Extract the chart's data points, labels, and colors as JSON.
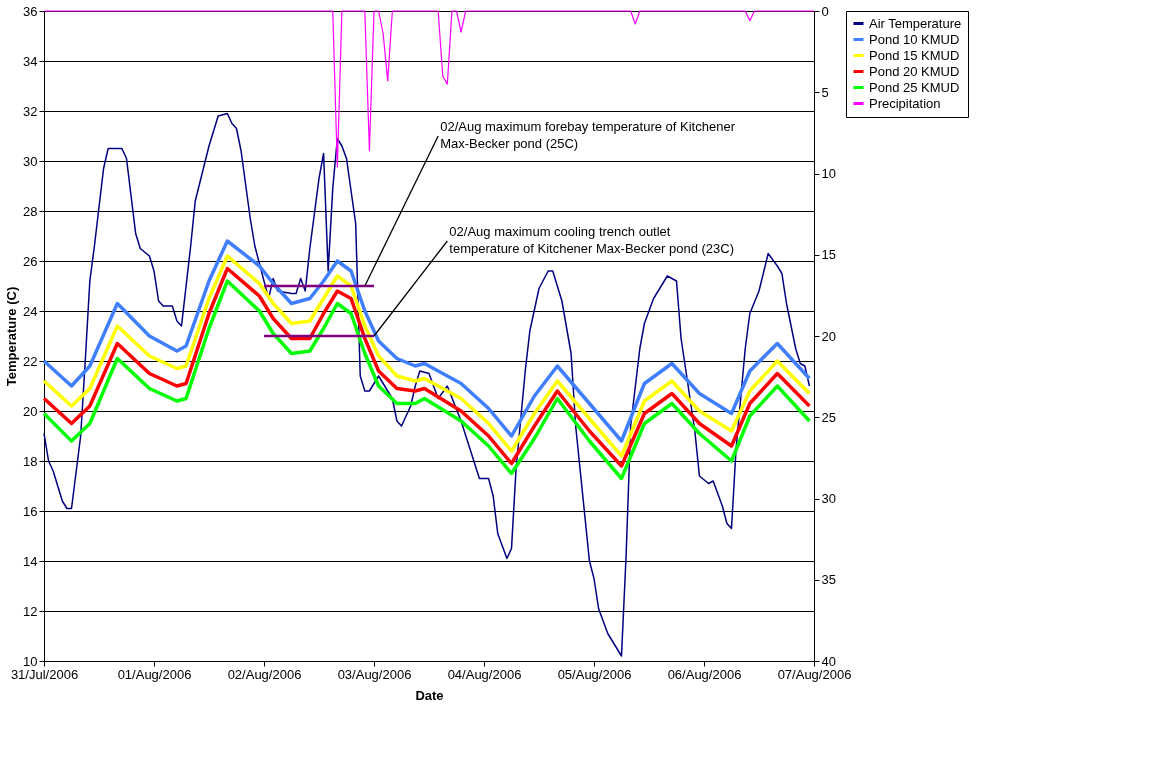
{
  "chart_data": {
    "type": "line",
    "xlabel": "Date",
    "ylabel": "Temperature (C)",
    "xlim": [
      "2006-07-31T00:00",
      "2006-08-07T00:00"
    ],
    "xticks": [
      {
        "value": "2006-07-31T00:00",
        "label": "31/Jul/2006"
      },
      {
        "value": "2006-08-01T00:00",
        "label": "01/Aug/2006"
      },
      {
        "value": "2006-08-02T00:00",
        "label": "02/Aug/2006"
      },
      {
        "value": "2006-08-03T00:00",
        "label": "03/Aug/2006"
      },
      {
        "value": "2006-08-04T00:00",
        "label": "04/Aug/2006"
      },
      {
        "value": "2006-08-05T00:00",
        "label": "05/Aug/2006"
      },
      {
        "value": "2006-08-06T00:00",
        "label": "06/Aug/2006"
      },
      {
        "value": "2006-08-07T00:00",
        "label": "07/Aug/2006"
      }
    ],
    "ylim": [
      10,
      36
    ],
    "yticks": [
      10,
      12,
      14,
      16,
      18,
      20,
      22,
      24,
      26,
      28,
      30,
      32,
      34,
      36
    ],
    "y2lim": [
      40,
      0
    ],
    "y2ticks": [
      0,
      5,
      10,
      15,
      20,
      25,
      30,
      35,
      40
    ],
    "grid": "y",
    "legend": "right",
    "marker": "none",
    "line_style": "solid",
    "x": [
      "2006-07-31T00:00",
      "2006-07-31T06:00",
      "2006-07-31T10:00",
      "2006-07-31T16:00",
      "2006-07-31T23:00",
      "2006-08-01T05:00",
      "2006-08-01T07:00",
      "2006-08-01T12:00",
      "2006-08-01T16:00",
      "2006-08-01T23:00",
      "2006-08-02T02:00",
      "2006-08-02T06:00",
      "2006-08-02T10:00",
      "2006-08-02T13:00",
      "2006-08-02T16:00",
      "2006-08-02T19:00",
      "2006-08-02T22:00",
      "2006-08-03T01:00",
      "2006-08-03T05:00",
      "2006-08-03T09:00",
      "2006-08-03T11:00",
      "2006-08-03T19:00",
      "2006-08-04T01:00",
      "2006-08-04T06:00",
      "2006-08-04T11:00",
      "2006-08-04T16:00",
      "2006-08-04T23:00",
      "2006-08-05T06:00",
      "2006-08-05T11:00",
      "2006-08-05T17:00",
      "2006-08-05T23:00",
      "2006-08-06T06:00",
      "2006-08-06T10:00",
      "2006-08-06T16:00",
      "2006-08-06T23:00"
    ],
    "series": [
      {
        "name": "Air Temperature",
        "color": "#000080",
        "x": [
          "2006-07-31T00:00",
          "2006-07-31T01:00",
          "2006-07-31T02:00",
          "2006-07-31T04:00",
          "2006-07-31T05:00",
          "2006-07-31T06:00",
          "2006-07-31T08:00",
          "2006-07-31T09:00",
          "2006-07-31T10:00",
          "2006-07-31T11:00",
          "2006-07-31T13:00",
          "2006-07-31T14:00",
          "2006-07-31T17:00",
          "2006-07-31T18:00",
          "2006-07-31T20:00",
          "2006-07-31T21:00",
          "2006-07-31T23:00",
          "2006-08-01T00:00",
          "2006-08-01T01:00",
          "2006-08-01T02:00",
          "2006-08-01T04:00",
          "2006-08-01T05:00",
          "2006-08-01T06:00",
          "2006-08-01T08:00",
          "2006-08-01T09:00",
          "2006-08-01T12:00",
          "2006-08-01T14:00",
          "2006-08-01T16:00",
          "2006-08-01T17:00",
          "2006-08-01T18:00",
          "2006-08-01T19:00",
          "2006-08-01T21:00",
          "2006-08-01T22:00",
          "2006-08-02T01:00",
          "2006-08-02T02:00",
          "2006-08-02T03:00",
          "2006-08-02T06:00",
          "2006-08-02T07:00",
          "2006-08-02T08:00",
          "2006-08-02T09:00",
          "2006-08-02T10:00",
          "2006-08-02T12:00",
          "2006-08-02T13:00",
          "2006-08-02T14:00",
          "2006-08-02T15:00",
          "2006-08-02T16:00",
          "2006-08-02T17:00",
          "2006-08-02T18:00",
          "2006-08-02T20:00",
          "2006-08-02T21:00",
          "2006-08-02T22:00",
          "2006-08-02T23:00",
          "2006-08-03T01:00",
          "2006-08-03T02:00",
          "2006-08-03T04:00",
          "2006-08-03T05:00",
          "2006-08-03T06:00",
          "2006-08-03T08:00",
          "2006-08-03T09:00",
          "2006-08-03T10:00",
          "2006-08-03T12:00",
          "2006-08-03T14:00",
          "2006-08-03T16:00",
          "2006-08-03T19:00",
          "2006-08-03T23:00",
          "2006-08-04T01:00",
          "2006-08-04T02:00",
          "2006-08-04T03:00",
          "2006-08-04T05:00",
          "2006-08-04T06:00",
          "2006-08-04T07:00",
          "2006-08-04T09:00",
          "2006-08-04T10:00",
          "2006-08-04T12:00",
          "2006-08-04T14:00",
          "2006-08-04T15:00",
          "2006-08-04T17:00",
          "2006-08-04T19:00",
          "2006-08-04T20:00",
          "2006-08-04T23:00",
          "2006-08-05T00:00",
          "2006-08-05T01:00",
          "2006-08-05T03:00",
          "2006-08-05T06:00",
          "2006-08-05T07:00",
          "2006-08-05T08:00",
          "2006-08-05T10:00",
          "2006-08-05T11:00",
          "2006-08-05T13:00",
          "2006-08-05T15:00",
          "2006-08-05T16:00",
          "2006-08-05T18:00",
          "2006-08-05T19:00",
          "2006-08-05T22:00",
          "2006-08-05T23:00",
          "2006-08-06T01:00",
          "2006-08-06T02:00",
          "2006-08-06T04:00",
          "2006-08-06T05:00",
          "2006-08-06T06:00",
          "2006-08-06T07:00",
          "2006-08-06T09:00",
          "2006-08-06T10:00",
          "2006-08-06T12:00",
          "2006-08-06T14:00",
          "2006-08-06T16:00",
          "2006-08-06T17:00",
          "2006-08-06T18:00",
          "2006-08-06T20:00",
          "2006-08-06T21:00",
          "2006-08-06T22:00",
          "2006-08-06T23:00"
        ],
        "values": [
          19.1,
          18.0,
          17.6,
          16.4,
          16.1,
          16.1,
          19.0,
          22.0,
          25.2,
          26.6,
          29.7,
          30.5,
          30.5,
          30.1,
          27.1,
          26.5,
          26.2,
          25.6,
          24.4,
          24.2,
          24.2,
          23.6,
          23.4,
          26.6,
          28.4,
          30.6,
          31.8,
          31.9,
          31.5,
          31.3,
          30.4,
          27.7,
          26.6,
          24.5,
          25.3,
          24.8,
          24.7,
          24.7,
          25.3,
          24.8,
          26.5,
          29.3,
          30.3,
          25.6,
          28.9,
          30.9,
          30.6,
          30.1,
          27.5,
          21.4,
          20.8,
          20.8,
          21.4,
          21.1,
          20.5,
          19.6,
          19.4,
          20.2,
          21.0,
          21.6,
          21.5,
          20.5,
          21.0,
          19.6,
          17.3,
          17.3,
          16.6,
          15.1,
          14.1,
          14.5,
          17.7,
          21.6,
          23.2,
          24.9,
          25.6,
          25.6,
          24.4,
          22.3,
          19.4,
          14.0,
          13.3,
          12.1,
          11.1,
          10.2,
          14.2,
          19.4,
          22.5,
          23.5,
          24.5,
          25.1,
          25.4,
          25.2,
          22.9,
          19.2,
          17.4,
          17.1,
          17.2,
          16.2,
          15.5,
          15.3,
          18.5,
          22.5,
          23.9,
          24.8,
          26.3,
          25.8,
          25.5,
          24.3,
          22.5,
          21.9,
          21.8,
          21.0
        ]
      },
      {
        "name": "Pond 10 KMUD",
        "color": "#3f7fff",
        "values": [
          22.0,
          21.0,
          21.8,
          24.3,
          23.0,
          22.4,
          22.6,
          25.2,
          26.8,
          25.8,
          25.1,
          24.3,
          24.5,
          25.2,
          26.0,
          25.6,
          24.0,
          22.8,
          22.1,
          21.8,
          21.9,
          21.1,
          20.1,
          19.0,
          20.6,
          21.8,
          20.3,
          18.8,
          21.1,
          21.9,
          20.7,
          19.9,
          21.6,
          22.7,
          21.3
        ]
      },
      {
        "name": "Pond 15 KMUD",
        "color": "#ffff00",
        "values": [
          21.2,
          20.2,
          20.9,
          23.4,
          22.2,
          21.7,
          21.8,
          24.5,
          26.2,
          25.1,
          24.3,
          23.5,
          23.6,
          24.5,
          25.4,
          25.0,
          23.4,
          22.2,
          21.4,
          21.2,
          21.3,
          20.5,
          19.5,
          18.4,
          19.9,
          21.2,
          19.7,
          18.2,
          20.4,
          21.2,
          20.0,
          19.2,
          20.8,
          22.0,
          20.7
        ]
      },
      {
        "name": "Pond 20 KMUD",
        "color": "#ff0000",
        "values": [
          20.5,
          19.5,
          20.2,
          22.7,
          21.5,
          21.0,
          21.1,
          23.9,
          25.7,
          24.6,
          23.7,
          22.9,
          22.9,
          23.9,
          24.8,
          24.5,
          22.9,
          21.6,
          20.9,
          20.8,
          20.9,
          20.0,
          19.0,
          17.9,
          19.4,
          20.8,
          19.2,
          17.8,
          19.9,
          20.7,
          19.5,
          18.6,
          20.3,
          21.5,
          20.2
        ]
      },
      {
        "name": "Pond 25 KMUD",
        "color": "#00ff00",
        "values": [
          19.9,
          18.8,
          19.5,
          22.1,
          20.9,
          20.4,
          20.5,
          23.3,
          25.2,
          24.0,
          23.1,
          22.3,
          22.4,
          23.3,
          24.3,
          23.9,
          22.3,
          21.0,
          20.3,
          20.3,
          20.5,
          19.6,
          18.6,
          17.5,
          18.9,
          20.5,
          18.8,
          17.3,
          19.5,
          20.3,
          19.1,
          18.0,
          19.8,
          21.0,
          19.6
        ]
      },
      {
        "name": "Precipitation",
        "color": "#ff00ff",
        "axis": "y2",
        "x": [
          "2006-07-31T00:00",
          "2006-08-02T15:00",
          "2006-08-02T16:00",
          "2006-08-02T17:00",
          "2006-08-02T22:00",
          "2006-08-02T23:00",
          "2006-08-03T00:00",
          "2006-08-03T01:00",
          "2006-08-03T02:00",
          "2006-08-03T03:00",
          "2006-08-03T04:00",
          "2006-08-03T14:00",
          "2006-08-03T15:00",
          "2006-08-03T16:00",
          "2006-08-03T17:00",
          "2006-08-03T18:00",
          "2006-08-03T19:00",
          "2006-08-03T20:00",
          "2006-08-05T08:00",
          "2006-08-05T09:00",
          "2006-08-05T10:00",
          "2006-08-06T09:00",
          "2006-08-06T10:00",
          "2006-08-06T11:00",
          "2006-08-07T00:00"
        ],
        "values": [
          0,
          0,
          9.6,
          0,
          0,
          8.6,
          0,
          0,
          1.4,
          4.3,
          0,
          0,
          4.0,
          4.5,
          0,
          0,
          1.3,
          0,
          0,
          0.8,
          0,
          0,
          0.6,
          0,
          0
        ]
      },
      {
        "type": "line",
        "color": "#800080",
        "x": [
          "2006-08-02T00:00",
          "2006-08-03T00:00"
        ],
        "values": [
          25,
          25
        ]
      },
      {
        "type": "line",
        "color": "#800080",
        "x": [
          "2006-08-02T00:00",
          "2006-08-03T00:00"
        ],
        "values": [
          23,
          23
        ]
      }
    ],
    "annotations": [
      {
        "text": "02/Aug maximum forebay temperature of Kitchener Max-Becker pond (25C)",
        "x": "2006-08-02T22:00",
        "y": 25
      },
      {
        "text": "02/Aug maximum cooling trench outlet temperature of Kitchener Max-Becker pond (23C)",
        "x": "2006-08-03T00:00",
        "y": 23
      }
    ]
  }
}
